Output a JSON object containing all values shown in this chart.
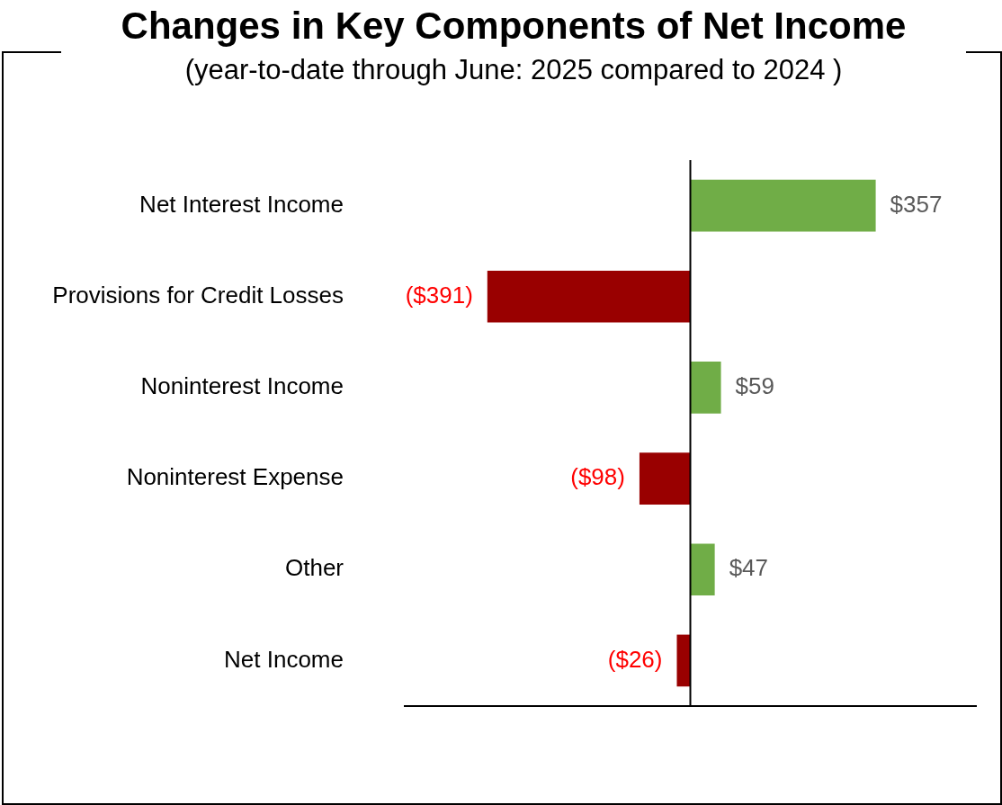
{
  "chart_data": {
    "type": "bar",
    "orientation": "horizontal",
    "title": "Changes in Key Components of Net Income",
    "subtitle": "(year-to-date through June: 2025 compared to 2024 )",
    "categories": [
      "Net Interest Income",
      "Provisions for Credit Losses",
      "Noninterest Income",
      "Noninterest Expense",
      "Other",
      "Net Income"
    ],
    "values": [
      357,
      -391,
      59,
      -98,
      47,
      -26
    ],
    "colors": [
      "#70ad47",
      "#990000",
      "#70ad47",
      "#990000",
      "#70ad47",
      "#990000"
    ],
    "value_labels": [
      "$357",
      "($391)",
      "$59",
      "($98)",
      "$47",
      "($26)"
    ],
    "xlim": [
      -550,
      550
    ],
    "tick_labels": "y"
  }
}
